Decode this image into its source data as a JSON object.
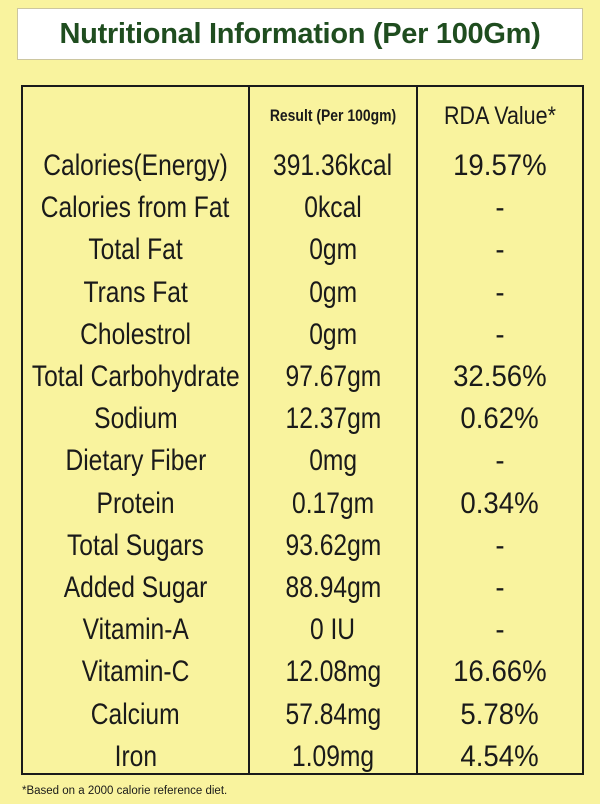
{
  "title": "Nutritional Information (Per 100Gm)",
  "table": {
    "headers": {
      "nutrient": "",
      "result": "Result (Per 100gm)",
      "rda": "RDA Value*"
    },
    "rows": [
      {
        "nutrient": "Calories(Energy)",
        "result": "391.36kcal",
        "rda": "19.57%"
      },
      {
        "nutrient": "Calories from Fat",
        "result": "0kcal",
        "rda": "-"
      },
      {
        "nutrient": "Total Fat",
        "result": "0gm",
        "rda": "-"
      },
      {
        "nutrient": "Trans Fat",
        "result": "0gm",
        "rda": "-"
      },
      {
        "nutrient": "Cholestrol",
        "result": "0gm",
        "rda": "-"
      },
      {
        "nutrient": "Total Carbohydrate",
        "result": "97.67gm",
        "rda": "32.56%"
      },
      {
        "nutrient": "Sodium",
        "result": "12.37gm",
        "rda": "0.62%"
      },
      {
        "nutrient": "Dietary Fiber",
        "result": "0mg",
        "rda": "-"
      },
      {
        "nutrient": "Protein",
        "result": "0.17gm",
        "rda": "0.34%"
      },
      {
        "nutrient": "Total Sugars",
        "result": "93.62gm",
        "rda": "-"
      },
      {
        "nutrient": "Added Sugar",
        "result": "88.94gm",
        "rda": "-"
      },
      {
        "nutrient": "Vitamin-A",
        "result": "0 IU",
        "rda": "-"
      },
      {
        "nutrient": "Vitamin-C",
        "result": "12.08mg",
        "rda": "16.66%"
      },
      {
        "nutrient": "Calcium",
        "result": "57.84mg",
        "rda": "5.78%"
      },
      {
        "nutrient": "Iron",
        "result": "1.09mg",
        "rda": "4.54%"
      }
    ]
  },
  "footnote": "*Based on a 2000 calorie reference diet.",
  "colors": {
    "background": "#f9f39e",
    "title_text": "#1f4d1f",
    "text": "#1a1a1a"
  }
}
